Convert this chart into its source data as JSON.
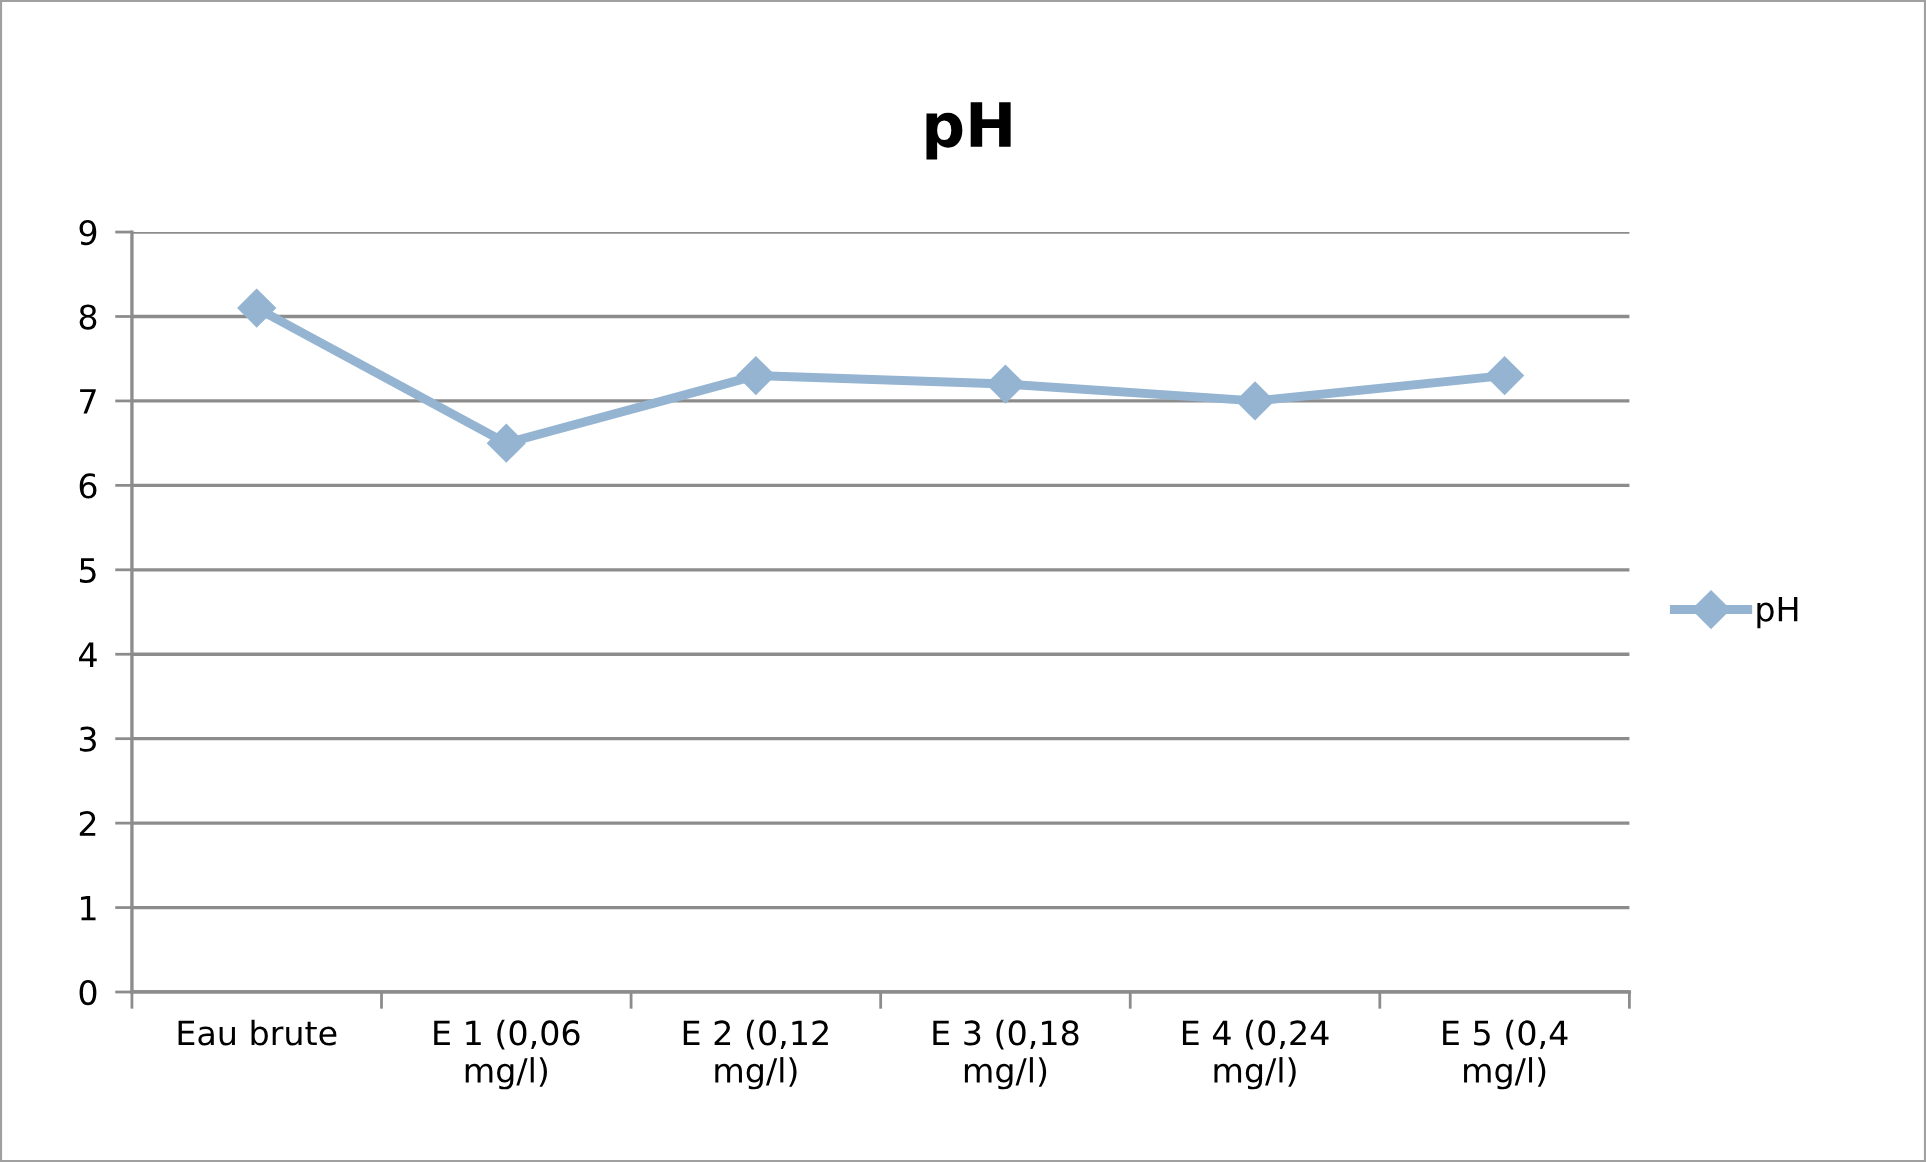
{
  "chart_data": {
    "type": "line",
    "title": "pH",
    "categories": [
      "Eau brute",
      "E 1 (0,06 mg/l)",
      "E 2 (0,12 mg/l)",
      "E 3 (0,18 mg/l)",
      "E 4 (0,24 mg/l)",
      "E 5 (0,4 mg/l)"
    ],
    "series": [
      {
        "name": "pH",
        "color": "#94b4d2",
        "values": [
          8.1,
          6.5,
          7.3,
          7.2,
          7.0,
          7.3
        ]
      }
    ],
    "ylim": [
      0,
      9
    ],
    "yticks": [
      0,
      1,
      2,
      3,
      4,
      5,
      6,
      7,
      8,
      9
    ],
    "grid": "y",
    "legend": "right",
    "marker": "diamond",
    "line_style": "solid"
  }
}
